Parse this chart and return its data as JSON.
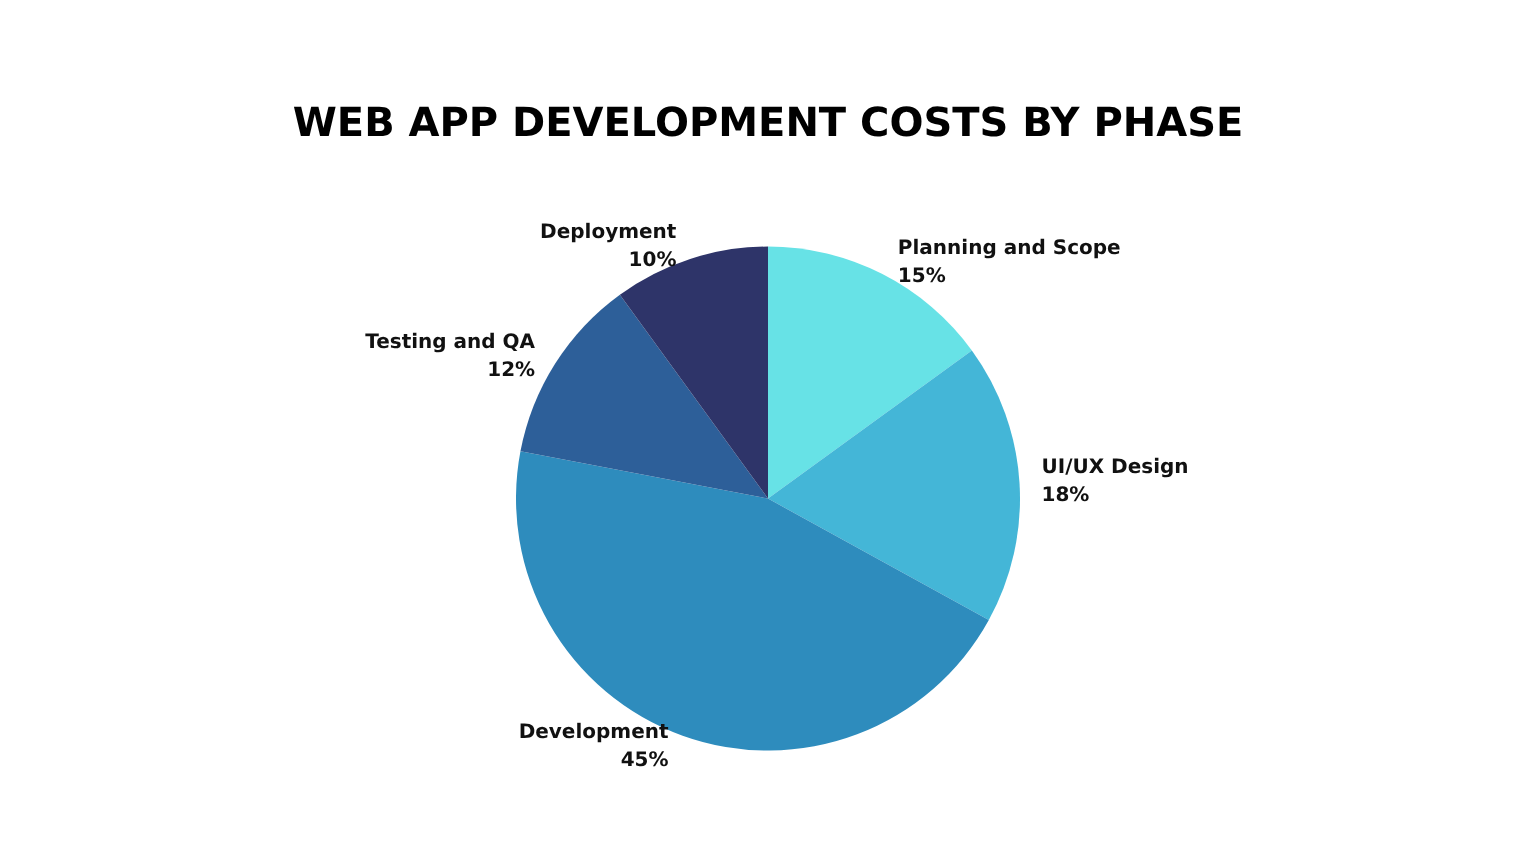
{
  "chart_data": {
    "type": "pie",
    "title": "WEB APP DEVELOPMENT COSTS BY PHASE",
    "categories": [
      "Planning and Scope",
      "UI/UX Design",
      "Development",
      "Testing and QA",
      "Deployment"
    ],
    "values": [
      15,
      18,
      45,
      12,
      10
    ],
    "value_labels": [
      "15%",
      "18%",
      "45%",
      "12%",
      "10%"
    ],
    "colors": [
      "#67e2e6",
      "#44b6d7",
      "#2e8cbd",
      "#2d5f99",
      "#2e3469"
    ],
    "legend": false
  }
}
